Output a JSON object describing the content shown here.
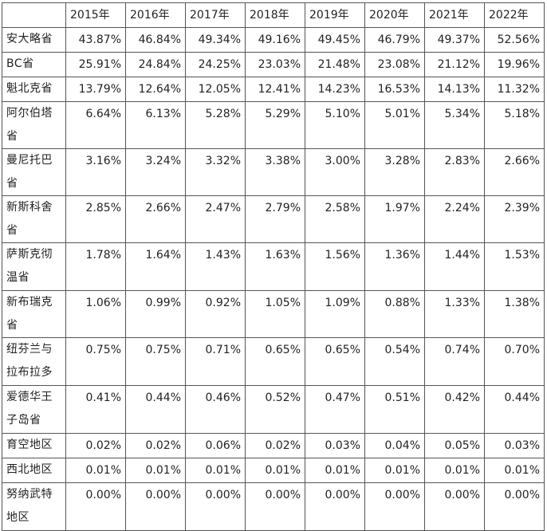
{
  "table": {
    "corner": "",
    "years": [
      "2015年",
      "2016年",
      "2017年",
      "2018年",
      "2019年",
      "2020年",
      "2021年",
      "2022年"
    ],
    "rows": [
      {
        "region": "安大略省",
        "values": [
          "43.87%",
          "46.84%",
          "49.34%",
          "49.16%",
          "49.45%",
          "46.79%",
          "49.37%",
          "52.56%"
        ]
      },
      {
        "region": "BC省",
        "values": [
          "25.91%",
          "24.84%",
          "24.25%",
          "23.03%",
          "21.48%",
          "23.08%",
          "21.12%",
          "19.96%"
        ]
      },
      {
        "region": "魁北克省",
        "values": [
          "13.79%",
          "12.64%",
          "12.05%",
          "12.41%",
          "14.23%",
          "16.53%",
          "14.13%",
          "11.32%"
        ]
      },
      {
        "region": "阿尔伯塔省",
        "values": [
          "6.64%",
          "6.13%",
          "5.28%",
          "5.29%",
          "5.10%",
          "5.01%",
          "5.34%",
          "5.18%"
        ]
      },
      {
        "region": "曼尼托巴省",
        "values": [
          "3.16%",
          "3.24%",
          "3.32%",
          "3.38%",
          "3.00%",
          "3.28%",
          "2.83%",
          "2.66%"
        ]
      },
      {
        "region": "新斯科舍省",
        "values": [
          "2.85%",
          "2.66%",
          "2.47%",
          "2.79%",
          "2.58%",
          "1.97%",
          "2.24%",
          "2.39%"
        ]
      },
      {
        "region": "萨斯克彻温省",
        "values": [
          "1.78%",
          "1.64%",
          "1.43%",
          "1.63%",
          "1.56%",
          "1.36%",
          "1.44%",
          "1.53%"
        ]
      },
      {
        "region": "新布瑞克省",
        "values": [
          "1.06%",
          "0.99%",
          "0.92%",
          "1.05%",
          "1.09%",
          "0.88%",
          "1.33%",
          "1.38%"
        ]
      },
      {
        "region": "纽芬兰与拉布拉多",
        "values": [
          "0.75%",
          "0.75%",
          "0.71%",
          "0.65%",
          "0.65%",
          "0.54%",
          "0.74%",
          "0.70%"
        ]
      },
      {
        "region": "爱德华王子岛省",
        "values": [
          "0.41%",
          "0.44%",
          "0.46%",
          "0.52%",
          "0.47%",
          "0.51%",
          "0.42%",
          "0.44%"
        ]
      },
      {
        "region": "育空地区",
        "values": [
          "0.02%",
          "0.02%",
          "0.06%",
          "0.02%",
          "0.03%",
          "0.04%",
          "0.05%",
          "0.03%"
        ]
      },
      {
        "region": "西北地区",
        "values": [
          "0.01%",
          "0.01%",
          "0.01%",
          "0.01%",
          "0.01%",
          "0.01%",
          "0.01%",
          "0.01%"
        ]
      },
      {
        "region": "努纳武特地区",
        "values": [
          "0.00%",
          "0.00%",
          "0.00%",
          "0.00%",
          "0.00%",
          "0.00%",
          "0.00%",
          "0.00%"
        ]
      }
    ]
  }
}
